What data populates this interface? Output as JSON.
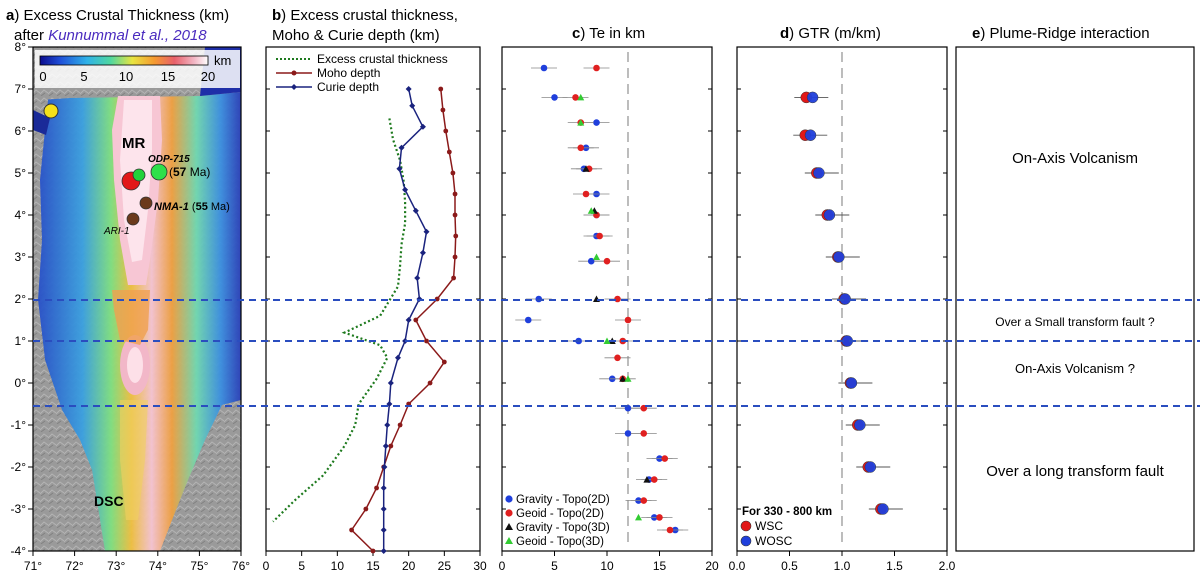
{
  "panels": {
    "a": {
      "letter": "a",
      "title_line1": "Excess Crustal Thickness (km)",
      "title_line2_prefix": "after",
      "title_citation": "Kunnummal et al., 2018",
      "colorbar_unit": "km",
      "colorbar_ticks": [
        "0",
        "5",
        "10",
        "15",
        "20"
      ],
      "x_ticks": [
        "71°",
        "72°",
        "73°",
        "74°",
        "75°",
        "76°"
      ],
      "y_ticks": [
        "8°",
        "7°",
        "6°",
        "5°",
        "4°",
        "3°",
        "2°",
        "1°",
        "0°",
        "-1°",
        "-2°",
        "-3°",
        "-4°"
      ],
      "labels": {
        "mr": "MR",
        "dsc": "DSC",
        "odp": "ODP-715",
        "odp_age_num": "57",
        "odp_age_unit": "Ma",
        "nma": "NMA-1",
        "nma_age_num": "55",
        "nma_age_unit": "Ma",
        "ari": "ARI-1"
      }
    },
    "b": {
      "letter": "b",
      "title_line1": "Excess crustal thickness,",
      "title_line2": "Moho & Curie depth (km)",
      "x_ticks": [
        "0",
        "5",
        "10",
        "15",
        "20",
        "25",
        "30"
      ]
    },
    "c": {
      "letter": "c",
      "title": "Te in km",
      "x_ticks": [
        "0",
        "5",
        "10",
        "15",
        "20"
      ]
    },
    "d": {
      "letter": "d",
      "title": "GTR (m/km)",
      "x_ticks": [
        "0.0",
        "0.5",
        "1.0",
        "1.5",
        "2.0"
      ],
      "note": "For 330 - 800 km"
    },
    "e": {
      "letter": "e",
      "title": "Plume-Ridge interaction",
      "zones": [
        "On-Axis Volcanism",
        "Over a Small transform fault ?",
        "On-Axis Volcanism ?",
        "Over a long transform fault"
      ]
    }
  },
  "colors": {
    "excess": "#1e7a1e",
    "moho": "#8b1a1a",
    "curie": "#1a237e",
    "gravity2d": "#1f3fdc",
    "geoid2d": "#e02020",
    "gravity3d": "#111111",
    "geoid3d": "#33cc33",
    "dashed_lines": "#2a4dbf",
    "ref_line": "#999999"
  },
  "chart_data": [
    {
      "id": "b",
      "type": "line",
      "xlabel": "km",
      "xlim": [
        0,
        30
      ],
      "ylim": [
        -4,
        8
      ],
      "series": [
        {
          "name": "Excess crustal thickness",
          "style": "dotted",
          "points": [
            [
              17.3,
              6.3
            ],
            [
              17.8,
              5.8
            ],
            [
              18.8,
              5.3
            ],
            [
              19.3,
              4.8
            ],
            [
              19.5,
              4.3
            ],
            [
              19.5,
              3.8
            ],
            [
              19.0,
              3.3
            ],
            [
              18.8,
              2.8
            ],
            [
              18.5,
              2.3
            ],
            [
              16.0,
              1.6
            ],
            [
              11.0,
              1.2
            ],
            [
              16.0,
              0.9
            ],
            [
              17.0,
              0.6
            ],
            [
              15.5,
              0.1
            ],
            [
              13.0,
              -0.5
            ],
            [
              12.5,
              -1.0
            ],
            [
              11.0,
              -1.5
            ],
            [
              8.0,
              -2.2
            ],
            [
              4.0,
              -2.8
            ],
            [
              1.0,
              -3.3
            ]
          ]
        },
        {
          "name": "Moho depth",
          "style": "solid",
          "points": [
            [
              24.5,
              7.0
            ],
            [
              24.8,
              6.5
            ],
            [
              25.2,
              6.0
            ],
            [
              25.7,
              5.5
            ],
            [
              26.2,
              5.0
            ],
            [
              26.5,
              4.5
            ],
            [
              26.5,
              4.0
            ],
            [
              26.6,
              3.5
            ],
            [
              26.5,
              3.0
            ],
            [
              26.3,
              2.5
            ],
            [
              24.0,
              2.0
            ],
            [
              21.0,
              1.5
            ],
            [
              22.5,
              1.0
            ],
            [
              25.0,
              0.5
            ],
            [
              23.0,
              0.0
            ],
            [
              20.0,
              -0.5
            ],
            [
              18.8,
              -1.0
            ],
            [
              17.5,
              -1.5
            ],
            [
              16.5,
              -2.0
            ],
            [
              15.5,
              -2.5
            ],
            [
              14.0,
              -3.0
            ],
            [
              12.0,
              -3.5
            ],
            [
              15.0,
              -4.0
            ]
          ]
        },
        {
          "name": "Curie depth",
          "style": "solid",
          "points": [
            [
              20.0,
              7.0
            ],
            [
              20.5,
              6.6
            ],
            [
              22.0,
              6.1
            ],
            [
              19.0,
              5.6
            ],
            [
              18.7,
              5.1
            ],
            [
              19.5,
              4.6
            ],
            [
              21.0,
              4.1
            ],
            [
              22.5,
              3.6
            ],
            [
              22.0,
              3.1
            ],
            [
              21.2,
              2.5
            ],
            [
              21.5,
              2.0
            ],
            [
              20.0,
              1.5
            ],
            [
              19.5,
              1.0
            ],
            [
              18.5,
              0.6
            ],
            [
              17.5,
              0.0
            ],
            [
              17.3,
              -0.5
            ],
            [
              17.0,
              -1.0
            ],
            [
              16.8,
              -1.5
            ],
            [
              16.6,
              -2.0
            ],
            [
              16.5,
              -2.5
            ],
            [
              16.5,
              -3.0
            ],
            [
              16.5,
              -3.5
            ],
            [
              16.5,
              -4.0
            ]
          ]
        }
      ],
      "legend": [
        "Excess crustal thickness",
        "Moho depth",
        "Curie depth"
      ]
    },
    {
      "id": "c",
      "type": "scatter",
      "title": "Te in km",
      "xlim": [
        0,
        20
      ],
      "ylim": [
        -4,
        8
      ],
      "reference_line_x": 12,
      "series": [
        {
          "name": "Gravity - Topo(2D)",
          "marker": "circle",
          "points": [
            [
              4.0,
              7.5
            ],
            [
              5.0,
              6.8
            ],
            [
              9.0,
              6.2
            ],
            [
              8.0,
              5.6
            ],
            [
              7.8,
              5.1
            ],
            [
              9.0,
              4.5
            ],
            [
              9.0,
              4.0
            ],
            [
              9.0,
              3.5
            ],
            [
              8.5,
              2.9
            ],
            [
              3.5,
              2.0
            ],
            [
              2.5,
              1.5
            ],
            [
              7.3,
              1.0
            ],
            [
              10.5,
              0.1
            ],
            [
              12.0,
              -0.6
            ],
            [
              12.0,
              -1.2
            ],
            [
              15.0,
              -1.8
            ],
            [
              14.0,
              -2.3
            ],
            [
              13.0,
              -2.8
            ],
            [
              14.5,
              -3.2
            ],
            [
              16.5,
              -3.5
            ]
          ]
        },
        {
          "name": "Geoid - Topo(2D)",
          "marker": "circle",
          "points": [
            [
              9.0,
              7.5
            ],
            [
              7.0,
              6.8
            ],
            [
              7.5,
              6.2
            ],
            [
              7.5,
              5.6
            ],
            [
              8.3,
              5.1
            ],
            [
              8.0,
              4.5
            ],
            [
              9.0,
              4.0
            ],
            [
              9.3,
              3.5
            ],
            [
              10.0,
              2.9
            ],
            [
              11.0,
              2.0
            ],
            [
              12.0,
              1.5
            ],
            [
              11.5,
              1.0
            ],
            [
              11.0,
              0.6
            ],
            [
              11.5,
              0.1
            ],
            [
              13.5,
              -0.6
            ],
            [
              13.5,
              -1.2
            ],
            [
              15.5,
              -1.8
            ],
            [
              14.5,
              -2.3
            ],
            [
              13.5,
              -2.8
            ],
            [
              15.0,
              -3.2
            ],
            [
              16.0,
              -3.5
            ]
          ]
        },
        {
          "name": "Gravity - Topo(3D)",
          "marker": "triangle",
          "points": [
            [
              8.0,
              5.1
            ],
            [
              8.8,
              4.1
            ],
            [
              9.0,
              2.0
            ],
            [
              10.5,
              1.0
            ],
            [
              11.5,
              0.1
            ],
            [
              13.8,
              -2.3
            ]
          ]
        },
        {
          "name": "Geoid - Topo(3D)",
          "marker": "triangle",
          "points": [
            [
              7.5,
              6.8
            ],
            [
              7.5,
              6.2
            ],
            [
              8.5,
              4.1
            ],
            [
              9.0,
              3.0
            ],
            [
              10.0,
              1.0
            ],
            [
              12.0,
              0.1
            ],
            [
              13.0,
              -3.2
            ]
          ]
        }
      ],
      "legend": [
        "Gravity - Topo(2D)",
        "Geoid - Topo(2D)",
        "Gravity - Topo(3D)",
        "Geoid - Topo(3D)"
      ]
    },
    {
      "id": "d",
      "type": "scatter",
      "title": "GTR (m/km)",
      "xlim": [
        0.0,
        2.0
      ],
      "ylim": [
        -4,
        8
      ],
      "reference_line_x": 1.0,
      "series": [
        {
          "name": "WSC",
          "marker": "circle",
          "points": [
            [
              0.66,
              6.8
            ],
            [
              0.65,
              5.9
            ],
            [
              0.76,
              5.0
            ],
            [
              0.86,
              4.0
            ],
            [
              0.96,
              3.0
            ],
            [
              1.02,
              2.0
            ],
            [
              1.04,
              1.0
            ],
            [
              1.08,
              0.0
            ],
            [
              1.15,
              -1.0
            ],
            [
              1.25,
              -2.0
            ],
            [
              1.37,
              -3.0
            ]
          ]
        },
        {
          "name": "WOSC",
          "marker": "circle",
          "points": [
            [
              0.72,
              6.8
            ],
            [
              0.7,
              5.9
            ],
            [
              0.78,
              5.0
            ],
            [
              0.88,
              4.0
            ],
            [
              0.97,
              3.0
            ],
            [
              1.03,
              2.0
            ],
            [
              1.05,
              1.0
            ],
            [
              1.09,
              0.0
            ],
            [
              1.17,
              -1.0
            ],
            [
              1.27,
              -2.0
            ],
            [
              1.39,
              -3.0
            ]
          ]
        }
      ],
      "legend": [
        "WSC",
        "WOSC"
      ]
    }
  ]
}
